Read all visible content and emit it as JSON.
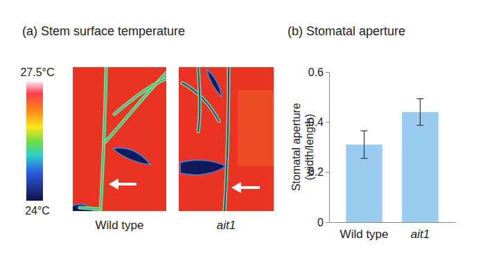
{
  "chart_data": [
    {
      "type": "thermal_image",
      "title": "(a) Stem surface temperature",
      "categories": [
        "Wild type",
        "ait1"
      ],
      "colorbar_range": [
        24,
        27.5
      ],
      "colorbar_ticks": [
        {
          "value": 27.5,
          "label": "27.5°C"
        },
        {
          "value": 24,
          "label": "24°C"
        }
      ]
    },
    {
      "type": "bar",
      "title": "(b) Stomatal aperture",
      "ylabel": [
        "Stomatal aperture",
        "(width/length)"
      ],
      "categories": [
        "Wild type",
        "ait1"
      ],
      "values": [
        0.31,
        0.44
      ],
      "errors": [
        0.055,
        0.053
      ],
      "color": "#99ccf0",
      "ylim": [
        0,
        0.6
      ],
      "yticks": [
        0,
        0.2,
        0.4,
        0.6
      ],
      "grid": false
    }
  ]
}
